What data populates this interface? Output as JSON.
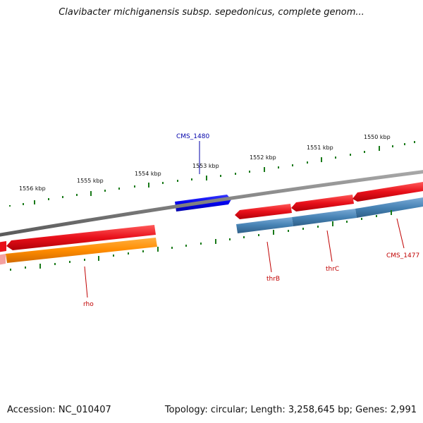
{
  "title": "Clavibacter michiganensis subsp. sepedonicus, complete genom...",
  "footer": {
    "accession": "Accession: NC_010407",
    "topology": "Topology: circular; Length: 3,258,645 bp; Genes: 2,991"
  },
  "ticks": [
    "1556 kbp",
    "1555 kbp",
    "1554 kbp",
    "1553 kbp",
    "1552 kbp",
    "1551 kbp",
    "1550 kbp"
  ],
  "genes": {
    "cms_1480": "CMS_1480",
    "rho": "rho",
    "thrB": "thrB",
    "thrC": "thrC",
    "cms_1477": "CMS_1477"
  },
  "colors": {
    "backbone": "#808080",
    "cds": "#e8101a",
    "gene_orange": "#ff8c00",
    "gene_blue": "#4682b4",
    "highlight": "#0000ee",
    "tick": "#1a7a1a",
    "label_red": "#c00000",
    "label_blue": "#0000aa"
  }
}
